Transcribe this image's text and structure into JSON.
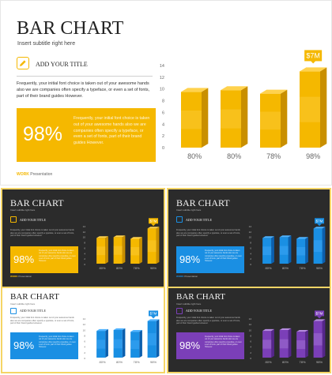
{
  "slide": {
    "title": "BAR CHART",
    "subtitle": "Insert subtitle right here",
    "section_title": "ADD YOUR TITLE",
    "body": "Frequently, your initial font choice is taken out of your awesome hands also we are companies often specify a typeface, or even a set of fonts, part of their brand guides However.",
    "stat_value": "98%",
    "stat_text": "Frequently, your initial font choice is taken out of your awesome hands also we are companies often specify a typeface, or even a set of fonts, part of their brand guides However.",
    "footer_word": "WORK",
    "footer_label": "Presentation",
    "icon": "pencil-icon"
  },
  "chart_data": {
    "type": "bar",
    "categories": [
      "",
      "",
      "",
      ""
    ],
    "values": [
      9.5,
      9.8,
      9.2,
      13
    ],
    "data_labels": [
      "80%",
      "80%",
      "78%",
      "98%"
    ],
    "callout": "$7M",
    "callout_index": 3,
    "yticks": [
      "0",
      "2",
      "4",
      "6",
      "8",
      "10",
      "12",
      "14"
    ],
    "ylim": [
      0,
      14
    ]
  },
  "variants": [
    {
      "id": "yellow-light",
      "background": "#ffffff",
      "accent": "#f5b800",
      "accent_dark": "#c98f00",
      "accent_light": "#ffd24d",
      "text": "#222222",
      "muted": "#666666",
      "box_text": "#ffffff"
    },
    {
      "id": "yellow-dark",
      "background": "#2b2b2b",
      "accent": "#f5b800",
      "accent_dark": "#c98f00",
      "accent_light": "#ffd24d",
      "text": "#f2f2f2",
      "muted": "#bbbbbb",
      "box_text": "#ffffff"
    },
    {
      "id": "blue-dark",
      "background": "#2b2b2b",
      "accent": "#1a8fe3",
      "accent_dark": "#0b5fae",
      "accent_light": "#4fb3ff",
      "text": "#f2f2f2",
      "muted": "#bbbbbb",
      "box_text": "#ffffff"
    },
    {
      "id": "blue-light",
      "background": "#ffffff",
      "accent": "#1a8fe3",
      "accent_dark": "#0b5fae",
      "accent_light": "#4fb3ff",
      "text": "#222222",
      "muted": "#666666",
      "box_text": "#ffffff"
    },
    {
      "id": "purple-dark",
      "background": "#2b2b2b",
      "accent": "#7b3fb8",
      "accent_dark": "#55268a",
      "accent_light": "#b58be0",
      "text": "#f2f2f2",
      "muted": "#bbbbbb",
      "box_text": "#ffffff"
    }
  ],
  "colors": {
    "frame": "#f5d566"
  }
}
